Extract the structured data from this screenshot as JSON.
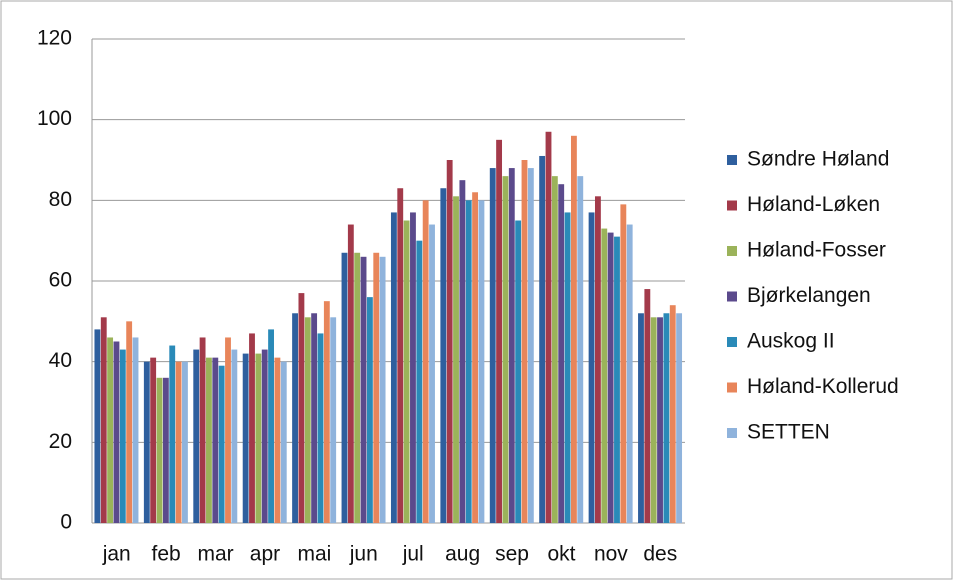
{
  "chart_data": {
    "type": "bar",
    "categories": [
      "jan",
      "feb",
      "mar",
      "apr",
      "mai",
      "jun",
      "jul",
      "aug",
      "sep",
      "okt",
      "nov",
      "des"
    ],
    "series": [
      {
        "name": "Søndre Høland",
        "color": "#2e5f9e",
        "values": [
          48,
          40,
          43,
          42,
          52,
          67,
          77,
          83,
          88,
          91,
          77,
          52
        ]
      },
      {
        "name": "Høland-Løken",
        "color": "#a33a4a",
        "values": [
          51,
          41,
          46,
          47,
          57,
          74,
          83,
          90,
          95,
          97,
          81,
          58
        ]
      },
      {
        "name": "Høland-Fosser",
        "color": "#9bb35a",
        "values": [
          46,
          36,
          41,
          42,
          51,
          67,
          75,
          81,
          86,
          86,
          73,
          51
        ]
      },
      {
        "name": "Bjørkelangen",
        "color": "#5b4a8c",
        "values": [
          45,
          36,
          41,
          43,
          52,
          66,
          77,
          85,
          88,
          84,
          72,
          51
        ]
      },
      {
        "name": "Auskog II",
        "color": "#2a8ab8",
        "values": [
          43,
          44,
          39,
          48,
          47,
          56,
          70,
          80,
          75,
          77,
          71,
          52
        ]
      },
      {
        "name": "Høland-Kollerud",
        "color": "#e8855a",
        "values": [
          50,
          40,
          46,
          41,
          55,
          67,
          80,
          82,
          90,
          96,
          79,
          54
        ]
      },
      {
        "name": "SETTEN",
        "color": "#8fb3dc",
        "values": [
          46,
          40,
          43,
          40,
          51,
          66,
          74,
          80,
          88,
          86,
          74,
          52
        ]
      }
    ],
    "ylim": [
      0,
      120
    ],
    "yticks": [
      0,
      20,
      40,
      60,
      80,
      100,
      120
    ],
    "grid": true,
    "legend": "right"
  }
}
